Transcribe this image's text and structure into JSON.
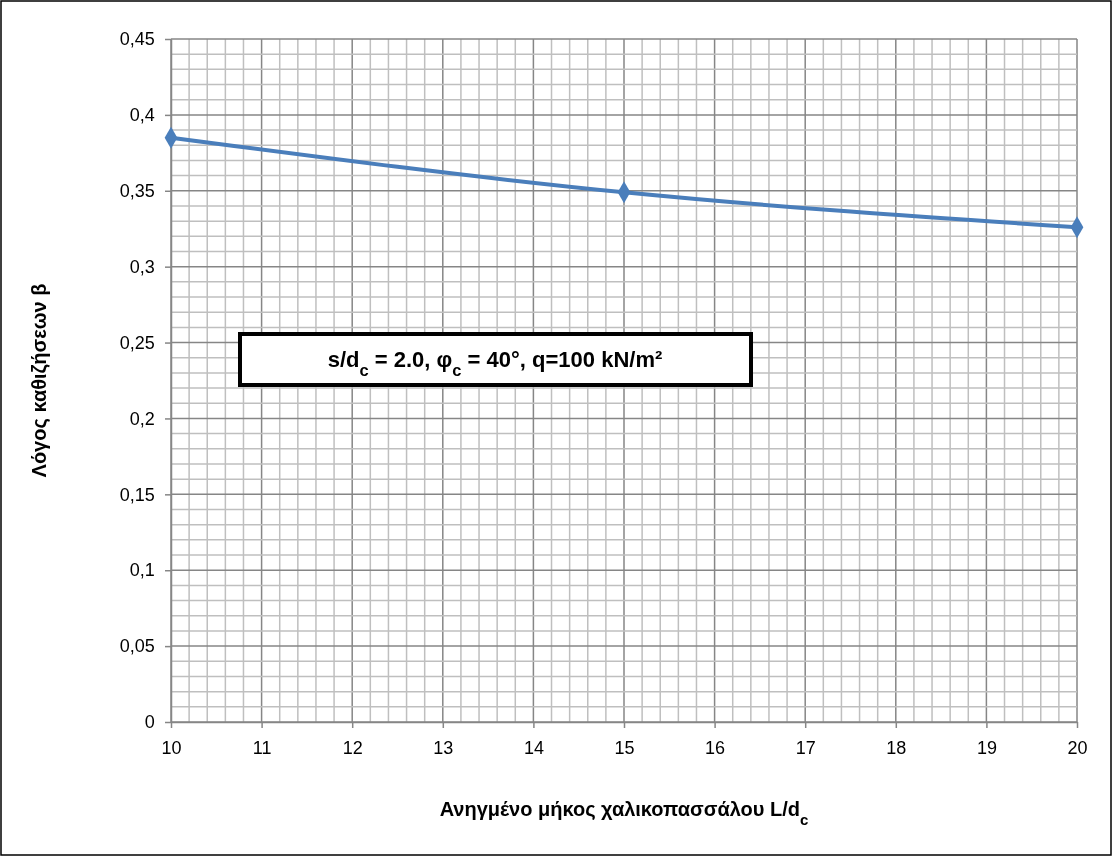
{
  "chart_data": {
    "type": "line",
    "xlabel": "Ανηγμένο μήκος χαλικοπασσάλου L/d$_{c}$",
    "ylabel": "Λόγος καθιζήσεων β",
    "annotations": [
      "s/d$_{c}$ = 2.0, φ$_{c}$ = 40°, q=100 kN/m²"
    ],
    "x": [
      10,
      15,
      20
    ],
    "series": [
      {
        "color": "#4a7ebb",
        "values": [
          0.385,
          0.349,
          0.326
        ]
      }
    ],
    "xlim": [
      10,
      20
    ],
    "xticks": [
      10,
      11,
      12,
      13,
      14,
      15,
      16,
      17,
      18,
      19,
      20
    ],
    "ylim": [
      0,
      0.45
    ],
    "yticks": [
      0,
      {
        "value": 0.05,
        "label": "0,05"
      },
      {
        "value": 0.1,
        "label": "0,1"
      },
      {
        "value": 0.15,
        "label": "0,15"
      },
      {
        "value": 0.2,
        "label": "0,2"
      },
      {
        "value": 0.25,
        "label": "0,25"
      },
      {
        "value": 0.3,
        "label": "0,3"
      },
      {
        "value": 0.35,
        "label": "0,35"
      },
      {
        "value": 0.4,
        "label": "0,4"
      },
      {
        "value": 0.45,
        "label": "0,45"
      }
    ],
    "grid": true,
    "marker": "diamond",
    "line_style": "solid"
  }
}
